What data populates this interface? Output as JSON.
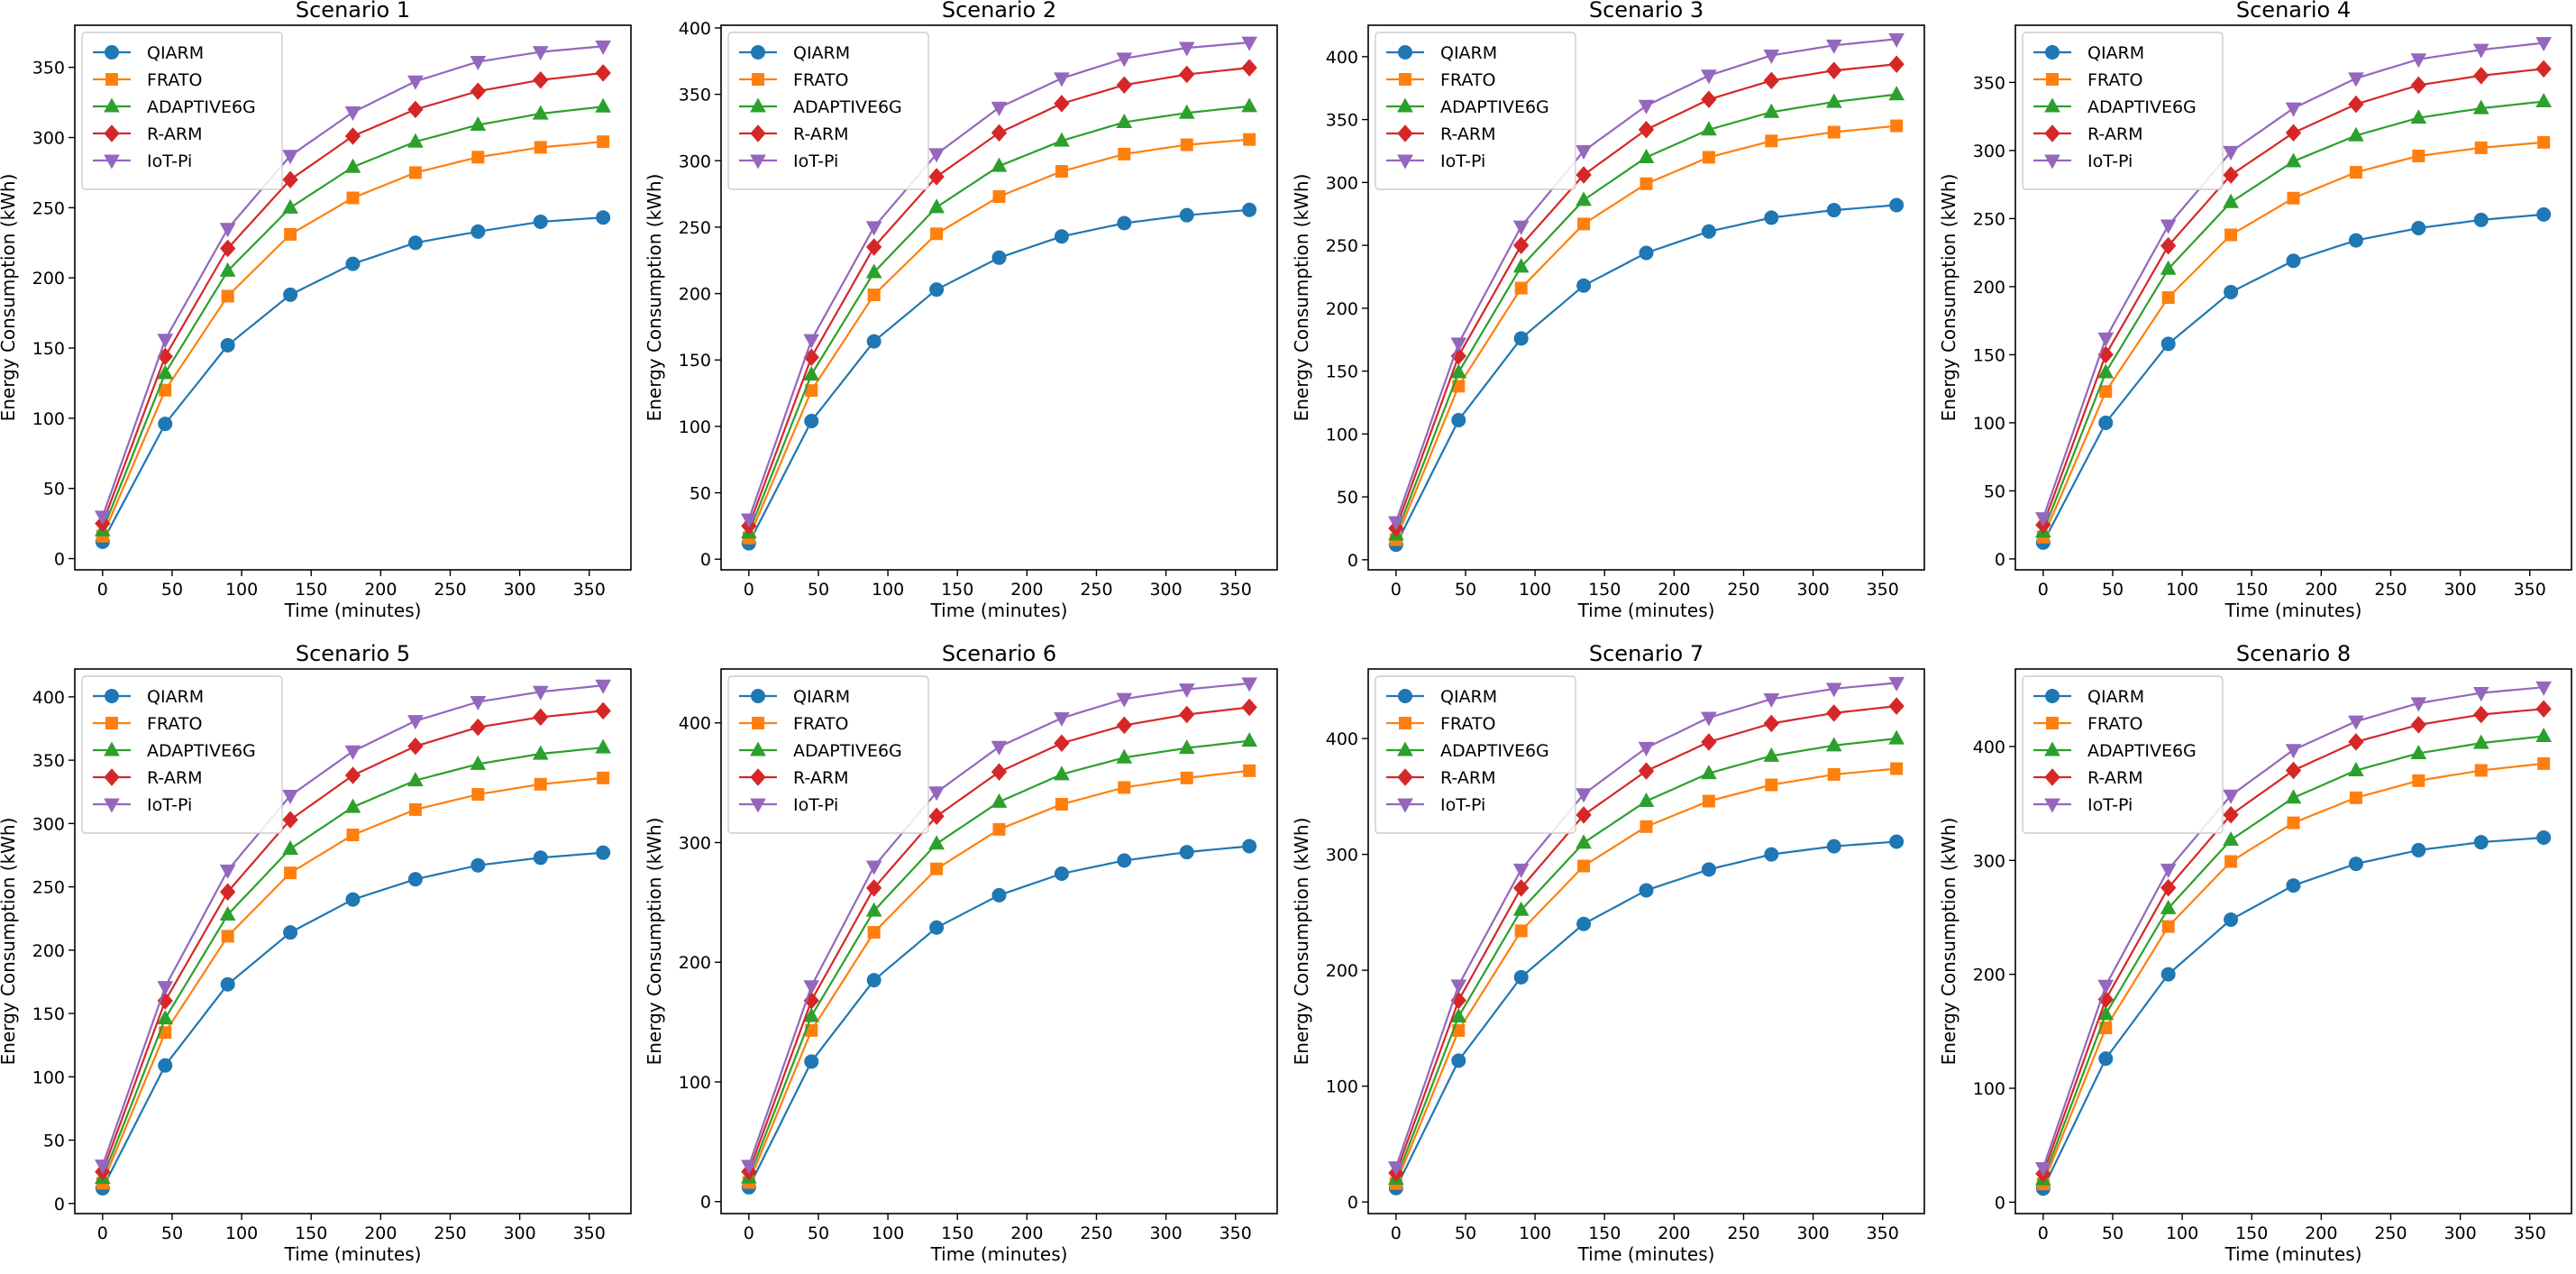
{
  "figure": {
    "xlabel": "Time (minutes)",
    "ylabel": "Energy Consumption (kWh)"
  },
  "chart_data": [
    {
      "type": "line",
      "title": "Scenario 1",
      "xlabel": "Time (minutes)",
      "ylabel": "Energy Consumption (kWh)",
      "xlim": [
        -20,
        380
      ],
      "ylim": [
        -8,
        380
      ],
      "xticks": [
        0,
        50,
        100,
        150,
        200,
        250,
        300,
        350
      ],
      "yticks": [
        0,
        50,
        100,
        150,
        200,
        250,
        300,
        350
      ],
      "legend": "top-left",
      "x": [
        0,
        45,
        90,
        135,
        180,
        225,
        270,
        315,
        360
      ],
      "series": [
        {
          "name": "QIARM",
          "color": "#1f77b4",
          "marker": "circle",
          "values": [
            12,
            96,
            152,
            188,
            210,
            225,
            233,
            240,
            243
          ]
        },
        {
          "name": "FRATO",
          "color": "#ff7f0e",
          "marker": "square",
          "values": [
            16,
            120,
            187,
            231,
            257,
            275,
            286,
            293,
            297
          ]
        },
        {
          "name": "ADAPTIVE6G",
          "color": "#2ca02c",
          "marker": "triangle-up",
          "values": [
            20,
            132,
            205,
            250,
            279,
            297,
            309,
            317,
            322
          ]
        },
        {
          "name": "R-ARM",
          "color": "#d62728",
          "marker": "diamond",
          "values": [
            25,
            144,
            221,
            270,
            301,
            320,
            333,
            341,
            346
          ]
        },
        {
          "name": "IoT-Pi",
          "color": "#9467bd",
          "marker": "triangle-down",
          "values": [
            30,
            156,
            235,
            287,
            318,
            340,
            354,
            361,
            365
          ]
        }
      ]
    },
    {
      "type": "line",
      "title": "Scenario 2",
      "xlabel": "Time (minutes)",
      "ylabel": "Energy Consumption (kWh)",
      "xlim": [
        -20,
        380
      ],
      "ylim": [
        -8,
        402
      ],
      "xticks": [
        0,
        50,
        100,
        150,
        200,
        250,
        300,
        350
      ],
      "yticks": [
        0,
        50,
        100,
        150,
        200,
        250,
        300,
        350,
        400
      ],
      "legend": "top-left",
      "x": [
        0,
        45,
        90,
        135,
        180,
        225,
        270,
        315,
        360
      ],
      "series": [
        {
          "name": "QIARM",
          "color": "#1f77b4",
          "marker": "circle",
          "values": [
            12,
            104,
            164,
            203,
            227,
            243,
            253,
            259,
            263
          ]
        },
        {
          "name": "FRATO",
          "color": "#ff7f0e",
          "marker": "square",
          "values": [
            16,
            127,
            199,
            245,
            273,
            292,
            305,
            312,
            316
          ]
        },
        {
          "name": "ADAPTIVE6G",
          "color": "#2ca02c",
          "marker": "triangle-up",
          "values": [
            20,
            139,
            216,
            265,
            296,
            315,
            329,
            336,
            341
          ]
        },
        {
          "name": "R-ARM",
          "color": "#d62728",
          "marker": "diamond",
          "values": [
            25,
            152,
            235,
            288,
            321,
            343,
            357,
            365,
            370
          ]
        },
        {
          "name": "IoT-Pi",
          "color": "#9467bd",
          "marker": "triangle-down",
          "values": [
            30,
            165,
            250,
            305,
            340,
            362,
            377,
            385,
            389
          ]
        }
      ]
    },
    {
      "type": "line",
      "title": "Scenario 3",
      "xlabel": "Time (minutes)",
      "ylabel": "Energy Consumption (kWh)",
      "xlim": [
        -20,
        380
      ],
      "ylim": [
        -8,
        425
      ],
      "xticks": [
        0,
        50,
        100,
        150,
        200,
        250,
        300,
        350
      ],
      "yticks": [
        0,
        50,
        100,
        150,
        200,
        250,
        300,
        350,
        400
      ],
      "legend": "top-left",
      "x": [
        0,
        45,
        90,
        135,
        180,
        225,
        270,
        315,
        360
      ],
      "series": [
        {
          "name": "QIARM",
          "color": "#1f77b4",
          "marker": "circle",
          "values": [
            12,
            111,
            176,
            218,
            244,
            261,
            272,
            278,
            282
          ]
        },
        {
          "name": "FRATO",
          "color": "#ff7f0e",
          "marker": "square",
          "values": [
            16,
            138,
            216,
            267,
            299,
            320,
            333,
            340,
            345
          ]
        },
        {
          "name": "ADAPTIVE6G",
          "color": "#2ca02c",
          "marker": "triangle-up",
          "values": [
            20,
            149,
            233,
            286,
            320,
            342,
            356,
            364,
            370
          ]
        },
        {
          "name": "R-ARM",
          "color": "#d62728",
          "marker": "diamond",
          "values": [
            25,
            162,
            250,
            306,
            342,
            366,
            381,
            389,
            394
          ]
        },
        {
          "name": "IoT-Pi",
          "color": "#9467bd",
          "marker": "triangle-down",
          "values": [
            30,
            172,
            265,
            325,
            361,
            385,
            401,
            409,
            414
          ]
        }
      ]
    },
    {
      "type": "line",
      "title": "Scenario 4",
      "xlabel": "Time (minutes)",
      "ylabel": "Energy Consumption (kWh)",
      "xlim": [
        -20,
        380
      ],
      "ylim": [
        -8,
        392
      ],
      "xticks": [
        0,
        50,
        100,
        150,
        200,
        250,
        300,
        350
      ],
      "yticks": [
        0,
        50,
        100,
        150,
        200,
        250,
        300,
        350
      ],
      "legend": "top-left",
      "x": [
        0,
        45,
        90,
        135,
        180,
        225,
        270,
        315,
        360
      ],
      "series": [
        {
          "name": "QIARM",
          "color": "#1f77b4",
          "marker": "circle",
          "values": [
            12,
            100,
            158,
            196,
            219,
            234,
            243,
            249,
            253
          ]
        },
        {
          "name": "FRATO",
          "color": "#ff7f0e",
          "marker": "square",
          "values": [
            16,
            123,
            192,
            238,
            265,
            284,
            296,
            302,
            306
          ]
        },
        {
          "name": "ADAPTIVE6G",
          "color": "#2ca02c",
          "marker": "triangle-up",
          "values": [
            20,
            137,
            213,
            262,
            292,
            311,
            324,
            331,
            336
          ]
        },
        {
          "name": "R-ARM",
          "color": "#d62728",
          "marker": "diamond",
          "values": [
            25,
            150,
            230,
            282,
            313,
            334,
            348,
            355,
            360
          ]
        },
        {
          "name": "IoT-Pi",
          "color": "#9467bd",
          "marker": "triangle-down",
          "values": [
            30,
            162,
            245,
            299,
            331,
            353,
            367,
            374,
            379
          ]
        }
      ]
    },
    {
      "type": "line",
      "title": "Scenario 5",
      "xlabel": "Time (minutes)",
      "ylabel": "Energy Consumption (kWh)",
      "xlim": [
        -20,
        380
      ],
      "ylim": [
        -8,
        422
      ],
      "xticks": [
        0,
        50,
        100,
        150,
        200,
        250,
        300,
        350
      ],
      "yticks": [
        0,
        50,
        100,
        150,
        200,
        250,
        300,
        350,
        400
      ],
      "legend": "top-left",
      "x": [
        0,
        45,
        90,
        135,
        180,
        225,
        270,
        315,
        360
      ],
      "series": [
        {
          "name": "QIARM",
          "color": "#1f77b4",
          "marker": "circle",
          "values": [
            12,
            109,
            173,
            214,
            240,
            256,
            267,
            273,
            277
          ]
        },
        {
          "name": "FRATO",
          "color": "#ff7f0e",
          "marker": "square",
          "values": [
            16,
            135,
            211,
            261,
            291,
            311,
            323,
            331,
            336
          ]
        },
        {
          "name": "ADAPTIVE6G",
          "color": "#2ca02c",
          "marker": "triangle-up",
          "values": [
            20,
            146,
            228,
            280,
            313,
            334,
            347,
            355,
            360
          ]
        },
        {
          "name": "R-ARM",
          "color": "#d62728",
          "marker": "diamond",
          "values": [
            25,
            160,
            246,
            303,
            338,
            361,
            376,
            384,
            389
          ]
        },
        {
          "name": "IoT-Pi",
          "color": "#9467bd",
          "marker": "triangle-down",
          "values": [
            30,
            171,
            263,
            322,
            357,
            381,
            396,
            404,
            409
          ]
        }
      ]
    },
    {
      "type": "line",
      "title": "Scenario 6",
      "xlabel": "Time (minutes)",
      "ylabel": "Energy Consumption (kWh)",
      "xlim": [
        -20,
        380
      ],
      "ylim": [
        -10,
        445
      ],
      "xticks": [
        0,
        50,
        100,
        150,
        200,
        250,
        300,
        350
      ],
      "yticks": [
        0,
        100,
        200,
        300,
        400
      ],
      "legend": "top-left",
      "x": [
        0,
        45,
        90,
        135,
        180,
        225,
        270,
        315,
        360
      ],
      "series": [
        {
          "name": "QIARM",
          "color": "#1f77b4",
          "marker": "circle",
          "values": [
            12,
            117,
            185,
            229,
            256,
            274,
            285,
            292,
            297
          ]
        },
        {
          "name": "FRATO",
          "color": "#ff7f0e",
          "marker": "square",
          "values": [
            16,
            143,
            225,
            278,
            311,
            332,
            346,
            354,
            360
          ]
        },
        {
          "name": "ADAPTIVE6G",
          "color": "#2ca02c",
          "marker": "triangle-up",
          "values": [
            20,
            155,
            243,
            299,
            334,
            357,
            371,
            379,
            385
          ]
        },
        {
          "name": "R-ARM",
          "color": "#d62728",
          "marker": "diamond",
          "values": [
            25,
            168,
            262,
            322,
            359,
            383,
            398,
            407,
            413
          ]
        },
        {
          "name": "IoT-Pi",
          "color": "#9467bd",
          "marker": "triangle-down",
          "values": [
            30,
            180,
            280,
            342,
            380,
            404,
            420,
            428,
            433
          ]
        }
      ]
    },
    {
      "type": "line",
      "title": "Scenario 7",
      "xlabel": "Time (minutes)",
      "ylabel": "Energy Consumption (kWh)",
      "xlim": [
        -20,
        380
      ],
      "ylim": [
        -10,
        460
      ],
      "xticks": [
        0,
        50,
        100,
        150,
        200,
        250,
        300,
        350
      ],
      "yticks": [
        0,
        100,
        200,
        300,
        400
      ],
      "legend": "top-left",
      "x": [
        0,
        45,
        90,
        135,
        180,
        225,
        270,
        315,
        360
      ],
      "series": [
        {
          "name": "QIARM",
          "color": "#1f77b4",
          "marker": "circle",
          "values": [
            12,
            122,
            194,
            240,
            269,
            287,
            300,
            307,
            311
          ]
        },
        {
          "name": "FRATO",
          "color": "#ff7f0e",
          "marker": "square",
          "values": [
            16,
            148,
            234,
            290,
            324,
            346,
            360,
            369,
            374
          ]
        },
        {
          "name": "ADAPTIVE6G",
          "color": "#2ca02c",
          "marker": "triangle-up",
          "values": [
            20,
            160,
            252,
            310,
            346,
            370,
            385,
            394,
            400
          ]
        },
        {
          "name": "R-ARM",
          "color": "#d62728",
          "marker": "diamond",
          "values": [
            25,
            174,
            271,
            334,
            372,
            397,
            413,
            422,
            428
          ]
        },
        {
          "name": "IoT-Pi",
          "color": "#9467bd",
          "marker": "triangle-down",
          "values": [
            30,
            187,
            287,
            352,
            392,
            418,
            434,
            443,
            448
          ]
        }
      ]
    },
    {
      "type": "line",
      "title": "Scenario 8",
      "xlabel": "Time (minutes)",
      "ylabel": "Energy Consumption (kWh)",
      "xlim": [
        -20,
        380
      ],
      "ylim": [
        -10,
        468
      ],
      "xticks": [
        0,
        50,
        100,
        150,
        200,
        250,
        300,
        350
      ],
      "yticks": [
        0,
        100,
        200,
        300,
        400
      ],
      "legend": "top-left",
      "x": [
        0,
        45,
        90,
        135,
        180,
        225,
        270,
        315,
        360
      ],
      "series": [
        {
          "name": "QIARM",
          "color": "#1f77b4",
          "marker": "circle",
          "values": [
            12,
            126,
            200,
            248,
            278,
            297,
            309,
            316,
            320
          ]
        },
        {
          "name": "FRATO",
          "color": "#ff7f0e",
          "marker": "square",
          "values": [
            16,
            153,
            242,
            299,
            333,
            355,
            370,
            379,
            385
          ]
        },
        {
          "name": "ADAPTIVE6G",
          "color": "#2ca02c",
          "marker": "triangle-up",
          "values": [
            20,
            165,
            258,
            318,
            355,
            379,
            394,
            403,
            409
          ]
        },
        {
          "name": "R-ARM",
          "color": "#d62728",
          "marker": "diamond",
          "values": [
            25,
            178,
            276,
            340,
            379,
            404,
            419,
            428,
            433
          ]
        },
        {
          "name": "IoT-Pi",
          "color": "#9467bd",
          "marker": "triangle-down",
          "values": [
            30,
            190,
            292,
            357,
            397,
            422,
            438,
            447,
            452
          ]
        }
      ]
    }
  ]
}
